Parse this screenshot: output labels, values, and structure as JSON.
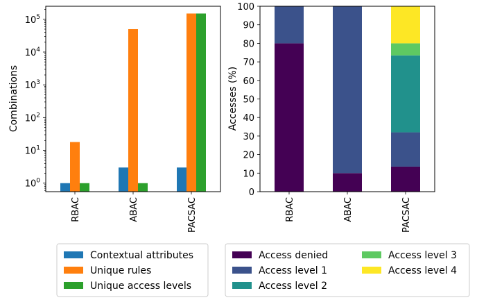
{
  "chart_data": [
    {
      "type": "bar",
      "xlabel": "",
      "ylabel": "Combinations",
      "yscale": "log",
      "ylim": [
        0.55,
        250000
      ],
      "categories": [
        "RBAC",
        "ABAC",
        "PACSAC"
      ],
      "ytick_labels": [
        {
          "base": "10",
          "exp": "0",
          "value": 1
        },
        {
          "base": "10",
          "exp": "1",
          "value": 10
        },
        {
          "base": "10",
          "exp": "2",
          "value": 100
        },
        {
          "base": "10",
          "exp": "3",
          "value": 1000
        },
        {
          "base": "10",
          "exp": "4",
          "value": 10000
        },
        {
          "base": "10",
          "exp": "5",
          "value": 100000
        }
      ],
      "series": [
        {
          "name": "Contextual attributes",
          "color": "#1f77b4",
          "values": [
            1,
            3,
            3
          ]
        },
        {
          "name": "Unique rules",
          "color": "#ff7f0e",
          "values": [
            18,
            50000,
            150000
          ]
        },
        {
          "name": "Unique access levels",
          "color": "#2ca02c",
          "values": [
            1,
            1,
            150000
          ]
        }
      ],
      "legend": "below"
    },
    {
      "type": "bar",
      "stacked": true,
      "xlabel": "",
      "ylabel": "Accesses (%)",
      "ylim": [
        0,
        100
      ],
      "yticks": [
        0,
        10,
        20,
        30,
        40,
        50,
        60,
        70,
        80,
        90,
        100
      ],
      "categories": [
        "RBAC",
        "ABAC",
        "PACSAC"
      ],
      "series": [
        {
          "name": "Access denied",
          "color": "#440154",
          "values": [
            80,
            10,
            13.5
          ]
        },
        {
          "name": "Access level 1",
          "color": "#3b528b",
          "values": [
            20,
            90,
            18.5
          ]
        },
        {
          "name": "Access level 2",
          "color": "#21918c",
          "values": [
            0,
            0,
            41.5
          ]
        },
        {
          "name": "Access level 3",
          "color": "#5ec962",
          "values": [
            0,
            0,
            6.5
          ]
        },
        {
          "name": "Access level 4",
          "color": "#fde725",
          "values": [
            0,
            0,
            20
          ]
        }
      ],
      "legend": "below"
    }
  ]
}
